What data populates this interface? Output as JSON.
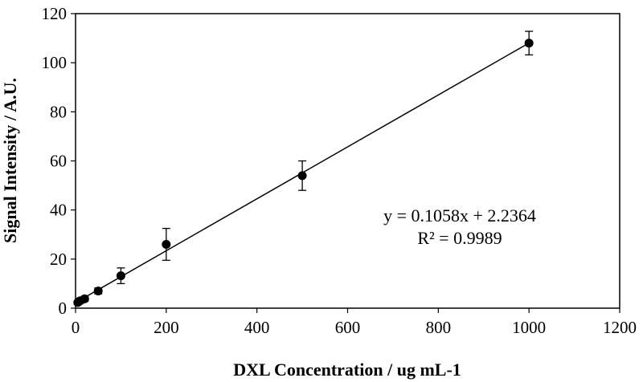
{
  "chart_data": {
    "type": "scatter",
    "title": "",
    "xlabel": "DXL Concentration / ug mL-1",
    "ylabel": "Signal Intensity / A.U.",
    "xlim": [
      0,
      1200
    ],
    "ylim": [
      0,
      120
    ],
    "x_ticks": [
      0,
      200,
      400,
      600,
      800,
      1000,
      1200
    ],
    "y_ticks": [
      0,
      20,
      40,
      60,
      80,
      100,
      120
    ],
    "grid": false,
    "legend": "none",
    "series": [
      {
        "x": [
          5,
          10,
          20,
          50,
          100,
          200,
          500,
          1000
        ],
        "y": [
          2.3,
          3.0,
          3.8,
          7.0,
          13.2,
          26.0,
          54.0,
          108.0
        ],
        "error": [
          0.8,
          1.0,
          1.0,
          1.2,
          3.2,
          6.5,
          6.0,
          4.8
        ],
        "color": "#000000"
      }
    ],
    "trendline": {
      "slope": 0.1058,
      "intercept": 2.2364,
      "x_range": [
        0,
        1000
      ],
      "color": "#000000"
    },
    "annotations": [
      "y = 0.1058x + 2.2364",
      "R² = 0.9989"
    ]
  }
}
